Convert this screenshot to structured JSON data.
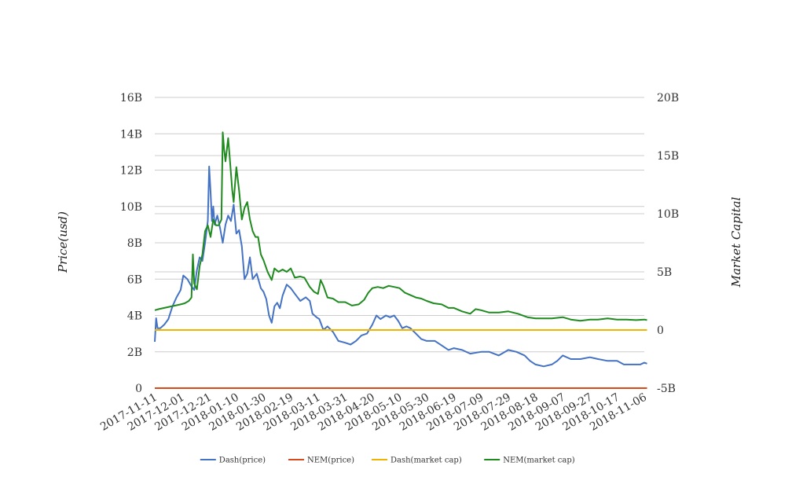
{
  "chart_data": {
    "type": "line",
    "title": "",
    "ylabel": "Price(usd)",
    "y2label": "Market Capital",
    "ylim": [
      0,
      16000000000
    ],
    "y2lim": [
      -5000000000,
      20000000000
    ],
    "y_ticks": [
      0,
      2000000000,
      4000000000,
      6000000000,
      8000000000,
      10000000000,
      12000000000,
      14000000000,
      16000000000
    ],
    "y_tick_labels": [
      "0",
      "2B",
      "4B",
      "6B",
      "8B",
      "10B",
      "12B",
      "14B",
      "16B"
    ],
    "y2_ticks": [
      -5000000000,
      0,
      5000000000,
      10000000000,
      15000000000,
      20000000000
    ],
    "y2_tick_labels": [
      "-5B",
      "0",
      "5B",
      "10B",
      "15B",
      "20B"
    ],
    "xlim": [
      "2017-11-11",
      "2018-11-06"
    ],
    "x_tick_labels": [
      "2017-11-11",
      "2017-12-01",
      "2017-12-21",
      "2018-01-10",
      "2018-01-30",
      "2018-02-19",
      "2018-03-11",
      "2018-03-31",
      "2018-04-20",
      "2018-05-10",
      "2018-05-30",
      "2018-06-19",
      "2018-07-09",
      "2018-07-29",
      "2018-08-18",
      "2018-09-07",
      "2018-09-27",
      "2018-10-17",
      "2018-11-06"
    ],
    "grid": true,
    "legend_position": "bottom",
    "series": [
      {
        "name": "Dash(price)",
        "axis": "left",
        "color": "#4472c4",
        "points": [
          [
            "2017-11-11",
            2550000000
          ],
          [
            "2017-11-12",
            3850000000
          ],
          [
            "2017-11-13",
            3300000000
          ],
          [
            "2017-11-15",
            3300000000
          ],
          [
            "2017-11-18",
            3500000000
          ],
          [
            "2017-11-21",
            3800000000
          ],
          [
            "2017-11-24",
            4500000000
          ],
          [
            "2017-11-27",
            5000000000
          ],
          [
            "2017-11-30",
            5400000000
          ],
          [
            "2017-12-02",
            6200000000
          ],
          [
            "2017-12-05",
            6000000000
          ],
          [
            "2017-12-08",
            5600000000
          ],
          [
            "2017-12-10",
            5400000000
          ],
          [
            "2017-12-12",
            6500000000
          ],
          [
            "2017-12-14",
            7200000000
          ],
          [
            "2017-12-16",
            7000000000
          ],
          [
            "2017-12-18",
            8000000000
          ],
          [
            "2017-12-20",
            9200000000
          ],
          [
            "2017-12-21",
            12200000000
          ],
          [
            "2017-12-22",
            10800000000
          ],
          [
            "2017-12-23",
            9200000000
          ],
          [
            "2017-12-24",
            10000000000
          ],
          [
            "2017-12-25",
            9000000000
          ],
          [
            "2017-12-27",
            9500000000
          ],
          [
            "2017-12-29",
            8800000000
          ],
          [
            "2017-12-31",
            8000000000
          ],
          [
            "2018-01-02",
            9000000000
          ],
          [
            "2018-01-04",
            9500000000
          ],
          [
            "2018-01-06",
            9200000000
          ],
          [
            "2018-01-08",
            10100000000
          ],
          [
            "2018-01-10",
            8500000000
          ],
          [
            "2018-01-12",
            8700000000
          ],
          [
            "2018-01-14",
            7800000000
          ],
          [
            "2018-01-16",
            6000000000
          ],
          [
            "2018-01-18",
            6300000000
          ],
          [
            "2018-01-20",
            7200000000
          ],
          [
            "2018-01-22",
            6000000000
          ],
          [
            "2018-01-25",
            6300000000
          ],
          [
            "2018-01-28",
            5500000000
          ],
          [
            "2018-01-30",
            5300000000
          ],
          [
            "2018-02-01",
            4900000000
          ],
          [
            "2018-02-03",
            4000000000
          ],
          [
            "2018-02-05",
            3600000000
          ],
          [
            "2018-02-07",
            4500000000
          ],
          [
            "2018-02-09",
            4700000000
          ],
          [
            "2018-02-11",
            4400000000
          ],
          [
            "2018-02-13",
            5100000000
          ],
          [
            "2018-02-16",
            5700000000
          ],
          [
            "2018-02-19",
            5500000000
          ],
          [
            "2018-02-22",
            5200000000
          ],
          [
            "2018-02-26",
            4800000000
          ],
          [
            "2018-03-02",
            5000000000
          ],
          [
            "2018-03-05",
            4800000000
          ],
          [
            "2018-03-07",
            4100000000
          ],
          [
            "2018-03-10",
            3900000000
          ],
          [
            "2018-03-12",
            3800000000
          ],
          [
            "2018-03-15",
            3200000000
          ],
          [
            "2018-03-18",
            3400000000
          ],
          [
            "2018-03-22",
            3100000000
          ],
          [
            "2018-03-26",
            2600000000
          ],
          [
            "2018-03-31",
            2500000000
          ],
          [
            "2018-04-04",
            2400000000
          ],
          [
            "2018-04-08",
            2600000000
          ],
          [
            "2018-04-12",
            2900000000
          ],
          [
            "2018-04-16",
            3000000000
          ],
          [
            "2018-04-20",
            3500000000
          ],
          [
            "2018-04-23",
            4000000000
          ],
          [
            "2018-04-26",
            3800000000
          ],
          [
            "2018-04-30",
            4000000000
          ],
          [
            "2018-05-03",
            3900000000
          ],
          [
            "2018-05-06",
            4000000000
          ],
          [
            "2018-05-09",
            3700000000
          ],
          [
            "2018-05-12",
            3300000000
          ],
          [
            "2018-05-15",
            3400000000
          ],
          [
            "2018-05-18",
            3300000000
          ],
          [
            "2018-05-22",
            3000000000
          ],
          [
            "2018-05-26",
            2700000000
          ],
          [
            "2018-05-30",
            2600000000
          ],
          [
            "2018-06-05",
            2600000000
          ],
          [
            "2018-06-11",
            2300000000
          ],
          [
            "2018-06-15",
            2100000000
          ],
          [
            "2018-06-19",
            2200000000
          ],
          [
            "2018-06-25",
            2100000000
          ],
          [
            "2018-07-01",
            1900000000
          ],
          [
            "2018-07-09",
            2000000000
          ],
          [
            "2018-07-15",
            2000000000
          ],
          [
            "2018-07-22",
            1800000000
          ],
          [
            "2018-07-29",
            2100000000
          ],
          [
            "2018-08-04",
            2000000000
          ],
          [
            "2018-08-10",
            1800000000
          ],
          [
            "2018-08-14",
            1500000000
          ],
          [
            "2018-08-18",
            1300000000
          ],
          [
            "2018-08-24",
            1200000000
          ],
          [
            "2018-08-30",
            1300000000
          ],
          [
            "2018-09-03",
            1500000000
          ],
          [
            "2018-09-07",
            1800000000
          ],
          [
            "2018-09-13",
            1600000000
          ],
          [
            "2018-09-20",
            1600000000
          ],
          [
            "2018-09-27",
            1700000000
          ],
          [
            "2018-10-03",
            1600000000
          ],
          [
            "2018-10-10",
            1500000000
          ],
          [
            "2018-10-17",
            1500000000
          ],
          [
            "2018-10-22",
            1300000000
          ],
          [
            "2018-10-29",
            1300000000
          ],
          [
            "2018-11-03",
            1300000000
          ],
          [
            "2018-11-06",
            1400000000
          ],
          [
            "2018-11-08",
            1350000000
          ]
        ]
      },
      {
        "name": "NEM(price)",
        "axis": "left",
        "color": "#d9491a",
        "points": [
          [
            "2017-11-11",
            0
          ],
          [
            "2018-11-08",
            0
          ]
        ]
      },
      {
        "name": "Dash(market cap)",
        "axis": "right",
        "color": "#f0b400",
        "points": [
          [
            "2017-11-11",
            0
          ],
          [
            "2018-11-08",
            0
          ]
        ]
      },
      {
        "name": "NEM(market cap)",
        "axis": "right",
        "color": "#1f8b1f",
        "points": [
          [
            "2017-11-11",
            1700000000
          ],
          [
            "2017-11-14",
            1800000000
          ],
          [
            "2017-11-18",
            1900000000
          ],
          [
            "2017-11-22",
            2000000000
          ],
          [
            "2017-11-26",
            2100000000
          ],
          [
            "2017-11-30",
            2200000000
          ],
          [
            "2017-12-03",
            2300000000
          ],
          [
            "2017-12-06",
            2500000000
          ],
          [
            "2017-12-08",
            2800000000
          ],
          [
            "2017-12-09",
            6500000000
          ],
          [
            "2017-12-10",
            4000000000
          ],
          [
            "2017-12-12",
            3500000000
          ],
          [
            "2017-12-14",
            5500000000
          ],
          [
            "2017-12-16",
            6500000000
          ],
          [
            "2017-12-18",
            8500000000
          ],
          [
            "2017-12-20",
            9000000000
          ],
          [
            "2017-12-22",
            8000000000
          ],
          [
            "2017-12-24",
            9500000000
          ],
          [
            "2017-12-26",
            9000000000
          ],
          [
            "2017-12-28",
            9000000000
          ],
          [
            "2017-12-30",
            9500000000
          ],
          [
            "2017-12-31",
            17000000000
          ],
          [
            "2018-01-01",
            15500000000
          ],
          [
            "2018-01-02",
            14500000000
          ],
          [
            "2018-01-03",
            15500000000
          ],
          [
            "2018-01-04",
            16500000000
          ],
          [
            "2018-01-05",
            15000000000
          ],
          [
            "2018-01-06",
            13500000000
          ],
          [
            "2018-01-07",
            12000000000
          ],
          [
            "2018-01-08",
            11000000000
          ],
          [
            "2018-01-10",
            14000000000
          ],
          [
            "2018-01-12",
            12000000000
          ],
          [
            "2018-01-14",
            9500000000
          ],
          [
            "2018-01-16",
            10500000000
          ],
          [
            "2018-01-18",
            11000000000
          ],
          [
            "2018-01-20",
            9500000000
          ],
          [
            "2018-01-22",
            8500000000
          ],
          [
            "2018-01-24",
            8000000000
          ],
          [
            "2018-01-26",
            8000000000
          ],
          [
            "2018-01-28",
            6500000000
          ],
          [
            "2018-01-30",
            6000000000
          ],
          [
            "2018-02-02",
            5000000000
          ],
          [
            "2018-02-05",
            4300000000
          ],
          [
            "2018-02-07",
            5300000000
          ],
          [
            "2018-02-10",
            5000000000
          ],
          [
            "2018-02-13",
            5200000000
          ],
          [
            "2018-02-16",
            5000000000
          ],
          [
            "2018-02-19",
            5300000000
          ],
          [
            "2018-02-22",
            4500000000
          ],
          [
            "2018-02-26",
            4600000000
          ],
          [
            "2018-03-01",
            4500000000
          ],
          [
            "2018-03-05",
            3700000000
          ],
          [
            "2018-03-08",
            3300000000
          ],
          [
            "2018-03-11",
            3100000000
          ],
          [
            "2018-03-13",
            4300000000
          ],
          [
            "2018-03-15",
            3800000000
          ],
          [
            "2018-03-18",
            2800000000
          ],
          [
            "2018-03-22",
            2700000000
          ],
          [
            "2018-03-26",
            2400000000
          ],
          [
            "2018-03-31",
            2400000000
          ],
          [
            "2018-04-05",
            2100000000
          ],
          [
            "2018-04-10",
            2200000000
          ],
          [
            "2018-04-14",
            2600000000
          ],
          [
            "2018-04-17",
            3200000000
          ],
          [
            "2018-04-20",
            3600000000
          ],
          [
            "2018-04-24",
            3700000000
          ],
          [
            "2018-04-28",
            3600000000
          ],
          [
            "2018-05-02",
            3800000000
          ],
          [
            "2018-05-06",
            3700000000
          ],
          [
            "2018-05-10",
            3600000000
          ],
          [
            "2018-05-14",
            3200000000
          ],
          [
            "2018-05-18",
            3000000000
          ],
          [
            "2018-05-22",
            2800000000
          ],
          [
            "2018-05-26",
            2700000000
          ],
          [
            "2018-05-30",
            2500000000
          ],
          [
            "2018-06-04",
            2300000000
          ],
          [
            "2018-06-10",
            2200000000
          ],
          [
            "2018-06-15",
            1900000000
          ],
          [
            "2018-06-19",
            1900000000
          ],
          [
            "2018-06-25",
            1600000000
          ],
          [
            "2018-07-01",
            1400000000
          ],
          [
            "2018-07-05",
            1800000000
          ],
          [
            "2018-07-09",
            1700000000
          ],
          [
            "2018-07-15",
            1500000000
          ],
          [
            "2018-07-22",
            1500000000
          ],
          [
            "2018-07-29",
            1600000000
          ],
          [
            "2018-08-05",
            1400000000
          ],
          [
            "2018-08-12",
            1100000000
          ],
          [
            "2018-08-18",
            1000000000
          ],
          [
            "2018-08-24",
            1000000000
          ],
          [
            "2018-08-30",
            1000000000
          ],
          [
            "2018-09-07",
            1100000000
          ],
          [
            "2018-09-13",
            900000000
          ],
          [
            "2018-09-20",
            800000000
          ],
          [
            "2018-09-27",
            900000000
          ],
          [
            "2018-10-03",
            900000000
          ],
          [
            "2018-10-10",
            1000000000
          ],
          [
            "2018-10-17",
            900000000
          ],
          [
            "2018-10-24",
            900000000
          ],
          [
            "2018-10-31",
            850000000
          ],
          [
            "2018-11-06",
            900000000
          ],
          [
            "2018-11-08",
            850000000
          ]
        ]
      }
    ]
  }
}
